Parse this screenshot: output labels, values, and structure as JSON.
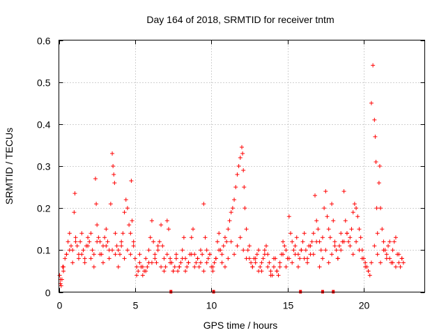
{
  "chart_data": {
    "type": "scatter",
    "title": "Day 164 of 2018, SRMTID for receiver tntm",
    "xlabel": "GPS time / hours",
    "ylabel": "SRMTID / TECUs",
    "xlim": [
      0,
      24
    ],
    "ylim": [
      0,
      0.6
    ],
    "grid": true,
    "marker": "+",
    "color": "#ff0000",
    "xticks": [
      0,
      5,
      10,
      15,
      20
    ],
    "xtick_labels": [
      "0",
      "5",
      "10",
      "15",
      "20"
    ],
    "yticks": [
      0,
      0.1,
      0.2,
      0.3,
      0.4,
      0.5,
      0.6
    ],
    "ytick_labels": [
      "0",
      "0.1",
      "0.2",
      "0.3",
      "0.4",
      "0.5",
      "0.6"
    ],
    "series": [
      {
        "name": "SRMTID",
        "x": [
          0.05,
          0.1,
          0.15,
          0.2,
          0.25,
          0.3,
          0.4,
          0.5,
          0.6,
          0.7,
          0.8,
          0.9,
          1.0,
          1.05,
          1.1,
          1.2,
          1.3,
          1.4,
          1.5,
          1.6,
          1.7,
          1.8,
          1.9,
          2.0,
          2.1,
          2.2,
          2.3,
          2.4,
          2.45,
          2.5,
          2.6,
          2.7,
          2.8,
          2.9,
          3.0,
          3.1,
          3.2,
          3.3,
          3.4,
          3.5,
          3.55,
          3.6,
          3.65,
          3.7,
          3.8,
          3.9,
          4.0,
          4.1,
          4.2,
          4.3,
          4.4,
          4.5,
          4.6,
          4.7,
          4.75,
          4.8,
          4.9,
          5.0,
          5.1,
          5.2,
          5.3,
          5.4,
          5.5,
          5.6,
          5.7,
          5.8,
          5.9,
          6.0,
          6.1,
          6.2,
          6.3,
          6.4,
          6.5,
          6.6,
          6.7,
          6.8,
          6.9,
          7.0,
          7.1,
          7.2,
          7.3,
          7.4,
          7.5,
          7.6,
          7.7,
          7.8,
          7.9,
          8.0,
          8.1,
          8.2,
          8.3,
          8.4,
          8.5,
          8.6,
          8.7,
          8.8,
          8.9,
          9.0,
          9.1,
          9.2,
          9.3,
          9.4,
          9.5,
          9.6,
          9.7,
          9.8,
          9.9,
          10.0,
          10.1,
          10.2,
          10.3,
          10.4,
          10.5,
          10.6,
          10.7,
          10.8,
          10.9,
          11.0,
          11.1,
          11.2,
          11.3,
          11.4,
          11.5,
          11.6,
          11.7,
          11.8,
          11.9,
          12.0,
          12.05,
          12.1,
          12.15,
          12.2,
          12.3,
          12.4,
          12.5,
          12.6,
          12.7,
          12.8,
          12.9,
          13.0,
          13.1,
          13.2,
          13.3,
          13.4,
          13.5,
          13.6,
          13.7,
          13.8,
          13.9,
          14.0,
          14.1,
          14.2,
          14.3,
          14.4,
          14.5,
          14.6,
          14.7,
          14.8,
          14.9,
          15.0,
          15.1,
          15.2,
          15.3,
          15.4,
          15.5,
          15.6,
          15.7,
          15.8,
          15.9,
          16.0,
          16.1,
          16.2,
          16.3,
          16.4,
          16.5,
          16.6,
          16.7,
          16.8,
          16.9,
          17.0,
          17.1,
          17.2,
          17.3,
          17.4,
          17.5,
          17.6,
          17.7,
          17.8,
          17.9,
          18.0,
          18.1,
          18.2,
          18.3,
          18.4,
          18.5,
          18.6,
          18.7,
          18.8,
          18.9,
          19.0,
          19.1,
          19.2,
          19.3,
          19.4,
          19.5,
          19.6,
          19.7,
          19.8,
          19.9,
          20.0,
          20.1,
          20.2,
          20.3,
          20.4,
          20.5,
          20.6,
          20.7,
          20.75,
          20.8,
          20.85,
          20.9,
          21.0,
          21.05,
          21.1,
          21.2,
          21.3,
          21.4,
          21.5,
          21.6,
          21.7,
          21.8,
          21.9,
          22.0,
          22.1,
          22.2,
          22.3,
          22.4,
          22.5,
          22.6,
          0.1,
          0.3,
          0.5,
          0.7,
          0.9,
          1.1,
          1.3,
          1.5,
          1.7,
          1.9,
          2.1,
          2.3,
          2.5,
          2.7,
          2.9,
          3.1,
          3.3,
          3.5,
          3.7,
          3.9,
          4.1,
          4.3,
          4.5,
          4.7,
          4.9,
          5.1,
          5.3,
          5.5,
          5.7,
          5.9,
          6.1,
          6.3,
          6.5,
          6.7,
          6.9,
          7.1,
          7.3,
          7.5,
          7.7,
          7.9,
          8.1,
          8.3,
          8.5,
          8.7,
          8.9,
          9.1,
          9.3,
          9.5,
          9.7,
          9.9,
          10.1,
          10.3,
          10.5,
          10.7,
          10.9,
          11.1,
          11.3,
          11.5,
          11.7,
          11.9,
          12.1,
          12.3,
          12.5,
          12.7,
          12.9,
          13.1,
          13.3,
          13.5,
          13.7,
          13.9,
          14.1,
          14.3,
          14.5,
          14.7,
          14.9,
          15.1,
          15.3,
          15.5,
          15.7,
          15.9,
          16.1,
          16.3,
          16.5,
          16.7,
          16.9,
          17.1,
          17.3,
          17.5,
          17.7,
          17.9,
          18.1,
          18.3,
          18.5,
          18.7,
          18.9,
          19.1,
          19.3,
          19.5,
          19.7,
          19.9,
          20.1,
          20.3,
          20.5,
          20.7,
          20.9,
          21.1,
          21.3,
          21.5,
          21.7,
          21.9,
          22.1,
          22.3,
          22.5
        ],
        "y": [
          0.04,
          0.02,
          0.015,
          0.03,
          0.06,
          0.05,
          0.08,
          0.09,
          0.12,
          0.14,
          0.11,
          0.1,
          0.19,
          0.235,
          0.13,
          0.11,
          0.09,
          0.12,
          0.14,
          0.1,
          0.08,
          0.11,
          0.13,
          0.12,
          0.14,
          0.1,
          0.09,
          0.27,
          0.21,
          0.16,
          0.13,
          0.12,
          0.09,
          0.11,
          0.13,
          0.15,
          0.12,
          0.1,
          0.21,
          0.33,
          0.3,
          0.28,
          0.26,
          0.14,
          0.11,
          0.1,
          0.09,
          0.12,
          0.14,
          0.19,
          0.22,
          0.2,
          0.16,
          0.14,
          0.265,
          0.17,
          0.11,
          0.08,
          0.06,
          0.05,
          0.07,
          0.06,
          0.04,
          0.05,
          0.08,
          0.06,
          0.07,
          0.13,
          0.17,
          0.12,
          0.09,
          0.07,
          0.1,
          0.12,
          0.16,
          0.11,
          0.08,
          0.06,
          0.17,
          0.15,
          0.08,
          0.07,
          0.05,
          0.06,
          0.08,
          0.05,
          0.06,
          0.07,
          0.1,
          0.13,
          0.08,
          0.06,
          0.07,
          0.09,
          0.13,
          0.15,
          0.09,
          0.07,
          0.08,
          0.06,
          0.07,
          0.09,
          0.21,
          0.13,
          0.1,
          0.08,
          0.09,
          0.06,
          0.05,
          0.07,
          0.08,
          0.12,
          0.14,
          0.1,
          0.09,
          0.11,
          0.13,
          0.12,
          0.15,
          0.17,
          0.19,
          0.2,
          0.22,
          0.25,
          0.28,
          0.3,
          0.32,
          0.345,
          0.33,
          0.29,
          0.25,
          0.2,
          0.15,
          0.1,
          0.08,
          0.07,
          0.06,
          0.08,
          0.07,
          0.09,
          0.1,
          0.06,
          0.05,
          0.08,
          0.1,
          0.11,
          0.09,
          0.07,
          0.05,
          0.04,
          0.06,
          0.08,
          0.05,
          0.04,
          0.06,
          0.09,
          0.12,
          0.11,
          0.1,
          0.08,
          0.18,
          0.14,
          0.12,
          0.1,
          0.11,
          0.13,
          0.09,
          0.08,
          0.1,
          0.12,
          0.14,
          0.1,
          0.08,
          0.11,
          0.09,
          0.12,
          0.14,
          0.23,
          0.17,
          0.15,
          0.12,
          0.1,
          0.13,
          0.2,
          0.24,
          0.18,
          0.15,
          0.13,
          0.21,
          0.17,
          0.12,
          0.1,
          0.08,
          0.11,
          0.14,
          0.12,
          0.24,
          0.17,
          0.14,
          0.12,
          0.13,
          0.15,
          0.19,
          0.21,
          0.2,
          0.18,
          0.15,
          0.13,
          0.1,
          0.08,
          0.07,
          0.06,
          0.05,
          0.04,
          0.45,
          0.54,
          0.41,
          0.37,
          0.31,
          0.2,
          0.14,
          0.26,
          0.3,
          0.2,
          0.15,
          0.12,
          0.1,
          0.09,
          0.11,
          0.08,
          0.07,
          0.1,
          0.12,
          0.13,
          0.09,
          0.07,
          0.06,
          0.08,
          0.07,
          0.03,
          0.06,
          0.09,
          0.1,
          0.07,
          0.12,
          0.08,
          0.09,
          0.07,
          0.11,
          0.08,
          0.06,
          0.12,
          0.09,
          0.07,
          0.11,
          0.08,
          0.1,
          0.09,
          0.06,
          0.11,
          0.08,
          0.1,
          0.09,
          0.12,
          0.04,
          0.09,
          0.06,
          0.05,
          0.1,
          0.07,
          0.08,
          0.11,
          0.06,
          0.05,
          0.09,
          0.07,
          0.05,
          0.09,
          0.06,
          0.08,
          0.05,
          0.07,
          0.09,
          0.06,
          0.08,
          0.1,
          0.05,
          0.07,
          0.09,
          0.06,
          0.08,
          0.1,
          0.07,
          0.06,
          0.08,
          0.12,
          0.09,
          0.11,
          0.13,
          0.1,
          0.08,
          0.11,
          0.06,
          0.08,
          0.05,
          0.07,
          0.09,
          0.06,
          0.04,
          0.08,
          0.05,
          0.07,
          0.09,
          0.06,
          0.08,
          0.07,
          0.09,
          0.06,
          0.1,
          0.08,
          0.07,
          0.11,
          0.09,
          0.12,
          0.06,
          0.08,
          0.1,
          0.07,
          0.09,
          0.11,
          0.08,
          0.1,
          0.12,
          0.14,
          0.11,
          0.09,
          0.12,
          0.1,
          0.08,
          0.06,
          0.05,
          0.07,
          0.11,
          0.09,
          0.07,
          0.1,
          0.08,
          0.12,
          0.07,
          0.06,
          0.09,
          0.08
        ]
      }
    ],
    "data_gaps_x": [
      7.35,
      10.15,
      15.85,
      17.3,
      18.0
    ]
  }
}
